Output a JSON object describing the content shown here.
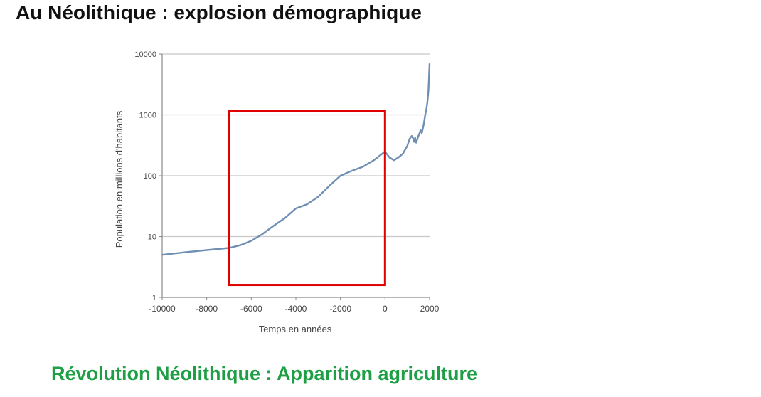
{
  "title": "Au Néolithique : explosion démographique",
  "footer_text": "Révolution Néolithique : Apparition agriculture",
  "colors": {
    "line": "#6f8fb4",
    "highlight_box": "#e00000",
    "footer": "#1e9f45",
    "grid": "#c8c8c8",
    "axis": "#888888"
  },
  "chart_data": {
    "type": "line",
    "title": "",
    "xlabel": "Temps en années",
    "ylabel": "Population en millions d'habitants",
    "yscale": "log",
    "xlim": [
      -10000,
      2000
    ],
    "ylim": [
      1,
      10000
    ],
    "xticks": [
      "-10000",
      "-8000",
      "-6000",
      "-4000",
      "-2000",
      "0",
      "2000"
    ],
    "xtick_values": [
      -10000,
      -8000,
      -6000,
      -4000,
      -2000,
      0,
      2000
    ],
    "yticks": [
      "1",
      "10",
      "100",
      "1000",
      "10000"
    ],
    "ytick_values": [
      1,
      10,
      100,
      1000,
      10000
    ],
    "grid": "horizontal",
    "series": [
      {
        "x": [
          -10000,
          -9000,
          -8000,
          -7000,
          -6500,
          -6000,
          -5500,
          -5000,
          -4500,
          -4000,
          -3500,
          -3000,
          -2500,
          -2000,
          -1500,
          -1000,
          -500,
          0,
          200,
          400,
          600,
          800,
          1000,
          1100,
          1200,
          1250,
          1300,
          1350,
          1400,
          1450,
          1500,
          1550,
          1600,
          1650,
          1700,
          1750,
          1800,
          1850,
          1900,
          1950,
          2000
        ],
        "y": [
          5,
          5.5,
          6,
          6.5,
          7.2,
          8.5,
          11,
          15,
          20,
          29,
          34,
          45,
          68,
          100,
          120,
          140,
          180,
          250,
          200,
          180,
          200,
          230,
          310,
          400,
          450,
          420,
          360,
          420,
          350,
          400,
          450,
          500,
          560,
          500,
          600,
          750,
          980,
          1200,
          1600,
          2500,
          7000
        ]
      }
    ],
    "annotations": [
      {
        "type": "rectangle",
        "x_range": [
          -7000,
          0
        ],
        "y_range": [
          1.6,
          1150
        ],
        "color": "#e00000"
      }
    ]
  }
}
